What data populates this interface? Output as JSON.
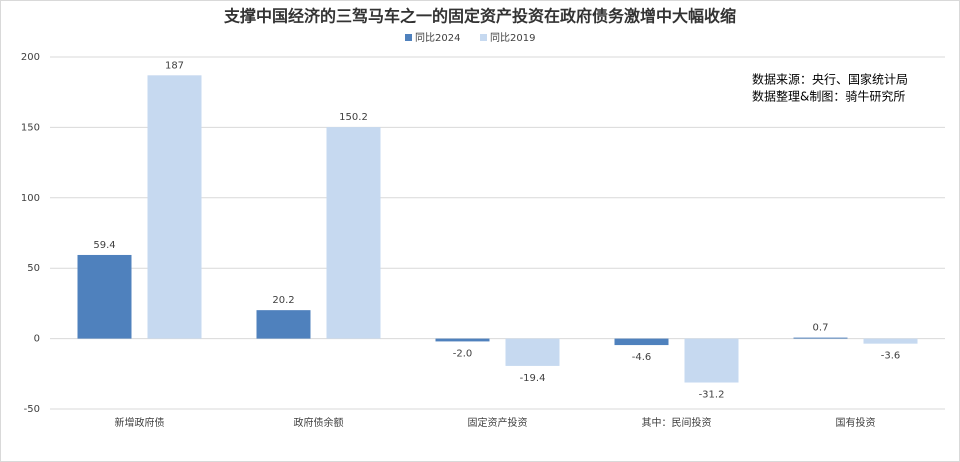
{
  "chart_data": {
    "type": "bar",
    "title": "支撑中国经济的三驾马车之一的固定资产投资在政府债务激增中大幅收缩",
    "annotations": [
      "数据来源：央行、国家统计局",
      "数据整理&制图：骑牛研究所"
    ],
    "categories": [
      "新增政府债",
      "政府债余额",
      "固定资产投资",
      "其中：民间投资",
      "国有投资"
    ],
    "series": [
      {
        "name": "同比2024",
        "color": "#4f81bd",
        "values": [
          59.4,
          20.2,
          -2.0,
          -4.6,
          0.7
        ],
        "value_labels": [
          "59.4",
          "20.2",
          "-2.0",
          "-4.6",
          "0.7"
        ]
      },
      {
        "name": "同比2019",
        "color": "#c6d9f0",
        "values": [
          187,
          150.2,
          -19.4,
          -31.2,
          -3.6
        ]
      }
    ],
    "ylim": [
      -50,
      200
    ],
    "yticks": [
      -50,
      0,
      50,
      100,
      150,
      200
    ],
    "grid": true,
    "legend": "top"
  }
}
